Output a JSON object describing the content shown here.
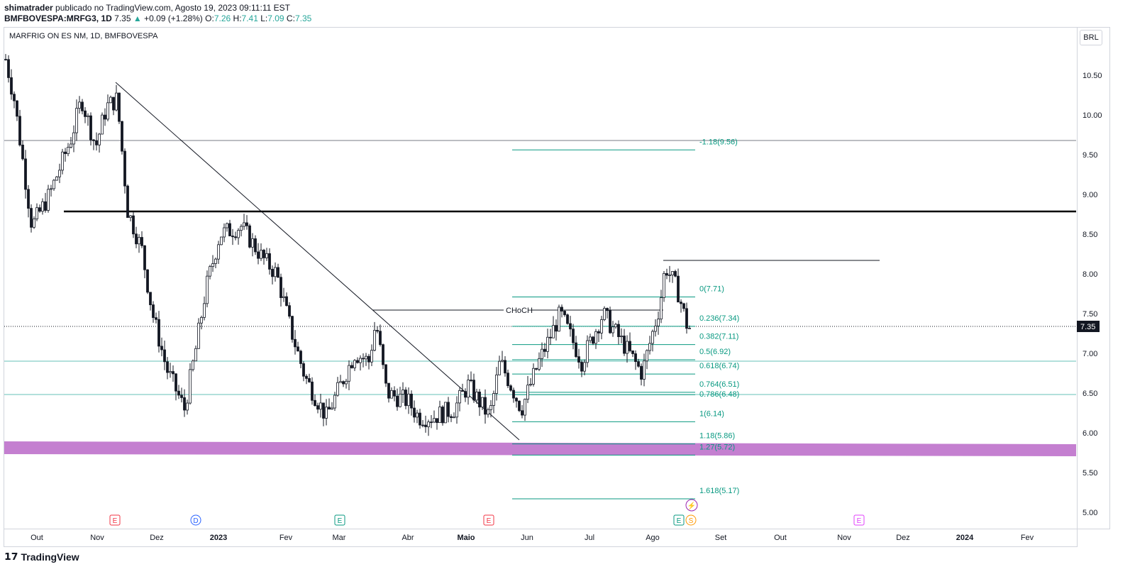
{
  "header": {
    "author": "shimatrader",
    "published": "publicado no TradingView.com, Agosto 19, 2023 09:11:11 EST",
    "symbol": "BMFBOVESPA:MRFG3, 1D",
    "last": "7.35",
    "change": "+0.09 (+1.28%)",
    "o": "7.26",
    "h": "7.41",
    "l": "7.09",
    "c": "7.35"
  },
  "chart_title": "MARFRIG ON ES NM, 1D, BMFBOVESPA",
  "currency": "BRL",
  "price_label": "7.35",
  "price_ticks": [
    "10.50",
    "10.00",
    "9.50",
    "9.00",
    "8.50",
    "8.00",
    "7.50",
    "7.00",
    "6.50",
    "6.00",
    "5.50",
    "5.00"
  ],
  "time_ticks": [
    "Out",
    "Nov",
    "Dez",
    "2023",
    "Fev",
    "Mar",
    "Abr",
    "Maio",
    "Jun",
    "Jul",
    "Ago",
    "Set",
    "Out",
    "Nov",
    "Dez",
    "2024",
    "Fev"
  ],
  "fib_levels": [
    {
      "label": "-1.18(9.56)",
      "p": 9.56
    },
    {
      "label": "0(7.71)",
      "p": 7.71
    },
    {
      "label": "0.236(7.34)",
      "p": 7.34
    },
    {
      "label": "0.382(7.11)",
      "p": 7.11
    },
    {
      "label": "0.5(6.92)",
      "p": 6.92
    },
    {
      "label": "0.618(6.74)",
      "p": 6.74
    },
    {
      "label": "0.764(6.51)",
      "p": 6.51
    },
    {
      "label": "0.786(6.48)",
      "p": 6.48
    },
    {
      "label": "1(6.14)",
      "p": 6.14
    },
    {
      "label": "1.18(5.86)",
      "p": 5.86
    },
    {
      "label": "1.27(5.72)",
      "p": 5.72
    },
    {
      "label": "1.618(5.17)",
      "p": 5.17
    }
  ],
  "annotation": "CHoCH",
  "events": [
    {
      "t": "E",
      "c": "#f23645"
    },
    {
      "t": "D",
      "c": "#2962ff"
    },
    {
      "t": "E",
      "c": "#089981"
    },
    {
      "t": "E",
      "c": "#f23645"
    },
    {
      "t": "E",
      "c": "#089981"
    },
    {
      "t": "S",
      "c": "#ff9800"
    },
    {
      "t": "E",
      "c": "#e040fb"
    }
  ],
  "logo": "TradingView"
}
